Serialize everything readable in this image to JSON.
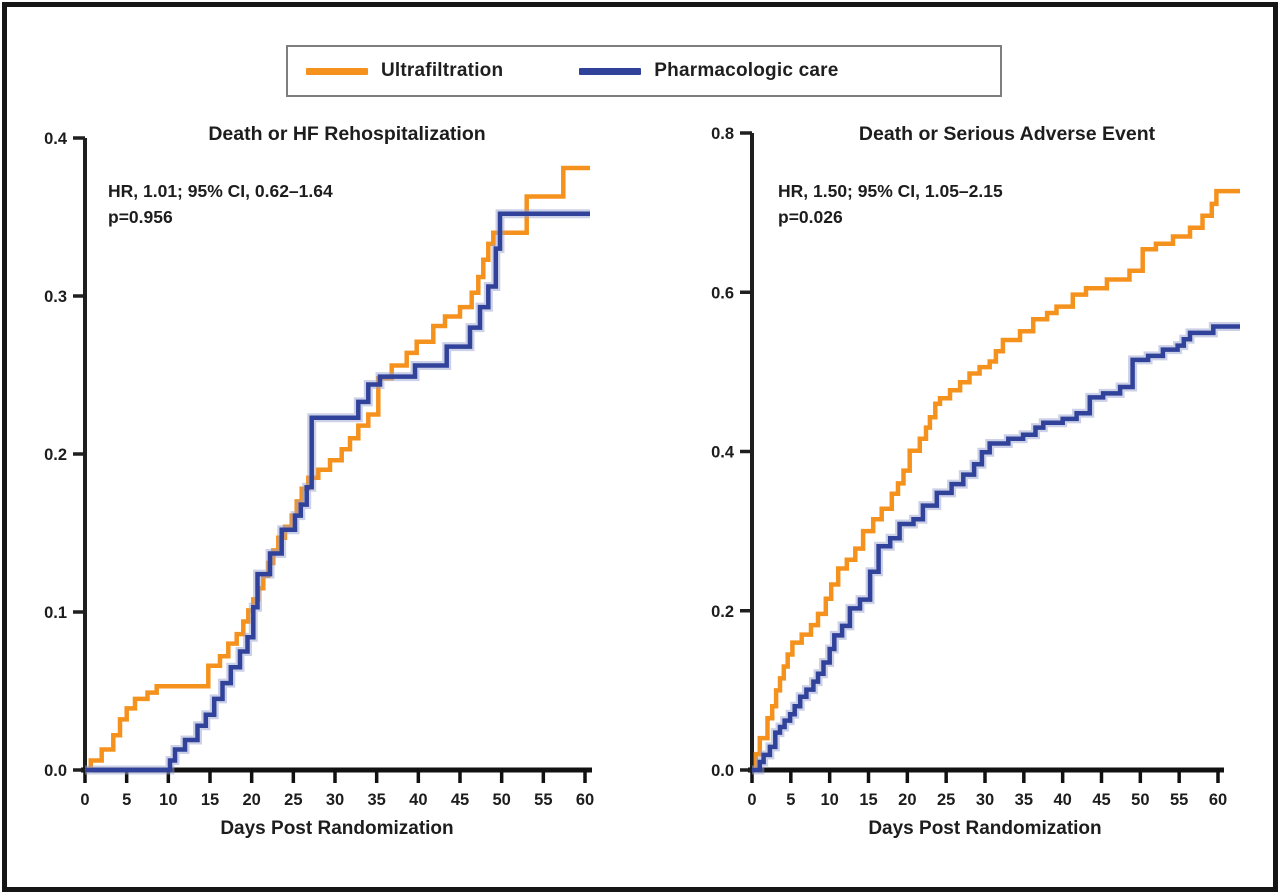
{
  "figure": {
    "background": "#ffffff",
    "border_color": "#161616"
  },
  "legend": {
    "items": [
      {
        "label": "Ultrafiltration",
        "color": "#F5921E"
      },
      {
        "label": "Pharmacologic care",
        "color": "#31429B"
      }
    ]
  },
  "chart_data": [
    {
      "type": "line",
      "style": "step-after",
      "title": "Death or HF Rehospitalization",
      "annotation_line1": "HR, 1.01; 95% CI, 0.62–1.64",
      "annotation_line2": "p=0.956",
      "xlabel": "Days Post Randomization",
      "xlim": [
        0,
        60
      ],
      "ylim": [
        0,
        0.4
      ],
      "x_ticks": [
        0,
        5,
        10,
        15,
        20,
        25,
        30,
        35,
        40,
        45,
        50,
        55,
        60
      ],
      "y_ticks": [
        "0.0",
        "0.1",
        "0.2",
        "0.3",
        "0.4"
      ],
      "grid": false,
      "legend_position": "top-outside",
      "series": [
        {
          "name": "Ultrafiltration",
          "color": "#F5921E",
          "points": [
            [
              0,
              0
            ],
            [
              0.7,
              0.006
            ],
            [
              2,
              0.013
            ],
            [
              3.4,
              0.022
            ],
            [
              4.2,
              0.032
            ],
            [
              5,
              0.039
            ],
            [
              6,
              0.045
            ],
            [
              7.5,
              0.049
            ],
            [
              8.6,
              0.053
            ],
            [
              14.8,
              0.066
            ],
            [
              16.2,
              0.072
            ],
            [
              17.2,
              0.08
            ],
            [
              18.2,
              0.086
            ],
            [
              19,
              0.094
            ],
            [
              19.6,
              0.101
            ],
            [
              20.2,
              0.108
            ],
            [
              20.8,
              0.115
            ],
            [
              21.4,
              0.123
            ],
            [
              22,
              0.131
            ],
            [
              22.6,
              0.139
            ],
            [
              23.2,
              0.147
            ],
            [
              24,
              0.154
            ],
            [
              24.8,
              0.161
            ],
            [
              25.4,
              0.17
            ],
            [
              26,
              0.178
            ],
            [
              26.8,
              0.185
            ],
            [
              28,
              0.19
            ],
            [
              29.4,
              0.196
            ],
            [
              30.8,
              0.203
            ],
            [
              31.8,
              0.21
            ],
            [
              32.8,
              0.218
            ],
            [
              34,
              0.225
            ],
            [
              35.2,
              0.248
            ],
            [
              36.8,
              0.256
            ],
            [
              38.6,
              0.264
            ],
            [
              39.8,
              0.271
            ],
            [
              41.8,
              0.281
            ],
            [
              43.2,
              0.287
            ],
            [
              45,
              0.293
            ],
            [
              46.4,
              0.302
            ],
            [
              47.2,
              0.312
            ],
            [
              47.8,
              0.323
            ],
            [
              48.4,
              0.333
            ],
            [
              49,
              0.34
            ],
            [
              53,
              0.363
            ],
            [
              57.4,
              0.381
            ],
            [
              60,
              0.381
            ]
          ]
        },
        {
          "name": "Pharmacologic care",
          "color": "#31429B",
          "halo": "#9AA4D2",
          "points": [
            [
              0,
              0
            ],
            [
              10.2,
              0.006
            ],
            [
              10.8,
              0.013
            ],
            [
              12,
              0.019
            ],
            [
              13.5,
              0.028
            ],
            [
              14.5,
              0.035
            ],
            [
              15.5,
              0.045
            ],
            [
              16.5,
              0.055
            ],
            [
              17.5,
              0.065
            ],
            [
              18.6,
              0.075
            ],
            [
              19.5,
              0.084
            ],
            [
              20.2,
              0.103
            ],
            [
              20.7,
              0.124
            ],
            [
              22.2,
              0.137
            ],
            [
              23.6,
              0.152
            ],
            [
              25.2,
              0.161
            ],
            [
              25.9,
              0.168
            ],
            [
              26.6,
              0.179
            ],
            [
              27.2,
              0.223
            ],
            [
              32.8,
              0.233
            ],
            [
              34,
              0.244
            ],
            [
              35.4,
              0.249
            ],
            [
              39.6,
              0.256
            ],
            [
              43.4,
              0.268
            ],
            [
              46.2,
              0.28
            ],
            [
              47.4,
              0.293
            ],
            [
              48.4,
              0.306
            ],
            [
              49.3,
              0.33
            ],
            [
              49.8,
              0.352
            ],
            [
              60,
              0.352
            ]
          ]
        }
      ]
    },
    {
      "type": "line",
      "style": "step-after",
      "title": "Death or Serious Adverse Event",
      "annotation_line1": "HR, 1.50; 95% CI, 1.05–2.15",
      "annotation_line2": "p=0.026",
      "xlabel": "Days Post Randomization",
      "xlim": [
        0,
        60
      ],
      "ylim": [
        0,
        0.8
      ],
      "x_ticks": [
        0,
        5,
        10,
        15,
        20,
        25,
        30,
        35,
        40,
        45,
        50,
        55,
        60
      ],
      "y_ticks": [
        "0.0",
        "0.2",
        "0.4",
        "0.6",
        "0.8"
      ],
      "grid": false,
      "legend_position": "top-outside",
      "series": [
        {
          "name": "Ultrafiltration",
          "color": "#F5921E",
          "points": [
            [
              0,
              0
            ],
            [
              0.5,
              0.02
            ],
            [
              1,
              0.04
            ],
            [
              2,
              0.065
            ],
            [
              2.6,
              0.08
            ],
            [
              3.1,
              0.1
            ],
            [
              3.6,
              0.115
            ],
            [
              4.1,
              0.13
            ],
            [
              4.6,
              0.145
            ],
            [
              5.2,
              0.16
            ],
            [
              6.4,
              0.17
            ],
            [
              7.6,
              0.182
            ],
            [
              8.5,
              0.196
            ],
            [
              9.5,
              0.215
            ],
            [
              10.2,
              0.233
            ],
            [
              11.1,
              0.253
            ],
            [
              12.2,
              0.264
            ],
            [
              13.3,
              0.278
            ],
            [
              14.3,
              0.3
            ],
            [
              15.6,
              0.315
            ],
            [
              16.7,
              0.328
            ],
            [
              18,
              0.347
            ],
            [
              18.8,
              0.36
            ],
            [
              19.5,
              0.376
            ],
            [
              20.3,
              0.401
            ],
            [
              21.6,
              0.416
            ],
            [
              22.4,
              0.43
            ],
            [
              22.9,
              0.443
            ],
            [
              23.6,
              0.46
            ],
            [
              24.2,
              0.467
            ],
            [
              25.5,
              0.477
            ],
            [
              26.8,
              0.487
            ],
            [
              28,
              0.498
            ],
            [
              29.3,
              0.506
            ],
            [
              30.6,
              0.513
            ],
            [
              31.4,
              0.526
            ],
            [
              32.3,
              0.54
            ],
            [
              34.5,
              0.551
            ],
            [
              36.2,
              0.566
            ],
            [
              38,
              0.574
            ],
            [
              39.2,
              0.582
            ],
            [
              41.3,
              0.597
            ],
            [
              43,
              0.605
            ],
            [
              45.7,
              0.616
            ],
            [
              48.6,
              0.627
            ],
            [
              50.3,
              0.654
            ],
            [
              52,
              0.661
            ],
            [
              54.2,
              0.67
            ],
            [
              56.4,
              0.681
            ],
            [
              58,
              0.696
            ],
            [
              59.2,
              0.711
            ],
            [
              59.8,
              0.727
            ],
            [
              60,
              0.727
            ]
          ]
        },
        {
          "name": "Pharmacologic care",
          "color": "#31429B",
          "halo": "#9AA4D2",
          "points": [
            [
              0,
              0
            ],
            [
              1,
              0.01
            ],
            [
              1.5,
              0.019
            ],
            [
              2.3,
              0.029
            ],
            [
              3,
              0.047
            ],
            [
              3.6,
              0.054
            ],
            [
              4.2,
              0.062
            ],
            [
              4.9,
              0.07
            ],
            [
              5.5,
              0.08
            ],
            [
              6.2,
              0.092
            ],
            [
              7,
              0.101
            ],
            [
              7.9,
              0.111
            ],
            [
              8.5,
              0.121
            ],
            [
              9.2,
              0.135
            ],
            [
              10,
              0.152
            ],
            [
              10.6,
              0.169
            ],
            [
              11.6,
              0.181
            ],
            [
              12.6,
              0.203
            ],
            [
              13.9,
              0.214
            ],
            [
              15.2,
              0.249
            ],
            [
              16.3,
              0.281
            ],
            [
              17.8,
              0.291
            ],
            [
              19,
              0.309
            ],
            [
              20.8,
              0.315
            ],
            [
              22,
              0.332
            ],
            [
              23.8,
              0.348
            ],
            [
              25.7,
              0.359
            ],
            [
              27.2,
              0.371
            ],
            [
              28.6,
              0.384
            ],
            [
              29.6,
              0.399
            ],
            [
              30.6,
              0.41
            ],
            [
              33,
              0.416
            ],
            [
              34.9,
              0.421
            ],
            [
              36.5,
              0.43
            ],
            [
              37.5,
              0.436
            ],
            [
              40,
              0.441
            ],
            [
              41.8,
              0.448
            ],
            [
              43.5,
              0.468
            ],
            [
              45.2,
              0.473
            ],
            [
              47.4,
              0.481
            ],
            [
              49,
              0.515
            ],
            [
              51,
              0.52
            ],
            [
              52.9,
              0.528
            ],
            [
              54.8,
              0.533
            ],
            [
              55.6,
              0.541
            ],
            [
              56.4,
              0.549
            ],
            [
              59.4,
              0.557
            ],
            [
              60,
              0.557
            ]
          ]
        }
      ]
    }
  ]
}
